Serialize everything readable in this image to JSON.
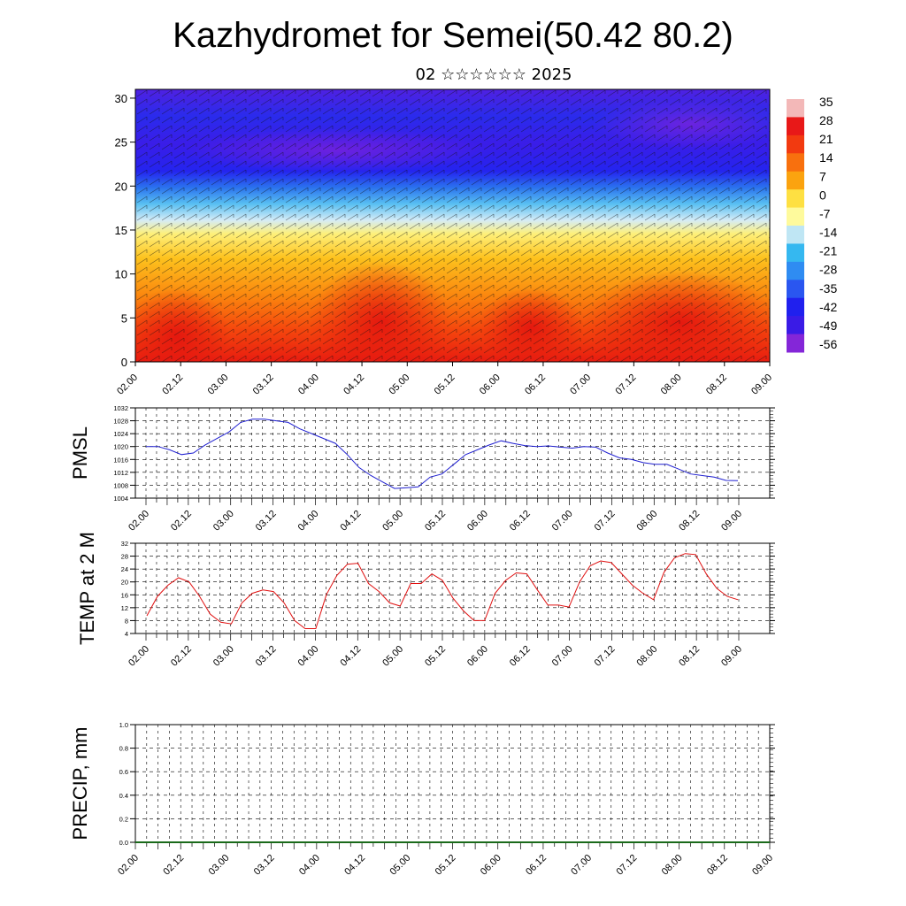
{
  "title": "Kazhydromet for Semei(50.42 80.2)",
  "subtitle": "02 ☆☆☆☆☆☆ 2025",
  "chart_data": [
    {
      "type": "heatmap",
      "name": "cross-section",
      "x_ticks": [
        "02.00",
        "02.12",
        "03.00",
        "03.12",
        "04.00",
        "04.12",
        "05.00",
        "05.12",
        "06.00",
        "06.12",
        "07.00",
        "07.12",
        "08.00",
        "08.12",
        "09.00"
      ],
      "y_ticks": [
        "0",
        "5",
        "10",
        "15",
        "20",
        "25",
        "30"
      ],
      "ylim": [
        0,
        31
      ],
      "colorbar_labels": [
        "35",
        "28",
        "21",
        "14",
        "7",
        "0",
        "-7",
        "-14",
        "-21",
        "-28",
        "-35",
        "-42",
        "-49",
        "-56"
      ],
      "colorbar_colors": [
        "#f3b8b8",
        "#e81818",
        "#f23a10",
        "#f8700e",
        "#fba30f",
        "#fee042",
        "#fefa9c",
        "#bfe6f4",
        "#35b8f0",
        "#2f8cf2",
        "#2a56f0",
        "#2020ee",
        "#3a1be6",
        "#8426d8"
      ],
      "has_wind_barbs": true
    },
    {
      "type": "line",
      "ylabel": "PMSL",
      "ylim": [
        1004,
        1032
      ],
      "yticks": [
        1004,
        1008,
        1012,
        1016,
        1020,
        1024,
        1028,
        1032
      ],
      "x_ticks": [
        "02.00",
        "02.12",
        "03.00",
        "03.12",
        "04.00",
        "04.12",
        "05.00",
        "05.12",
        "06.00",
        "06.12",
        "07.00",
        "07.12",
        "08.00",
        "08.12",
        "09.00"
      ],
      "color": "#1f1fd0",
      "values": [
        1020,
        1020,
        1019,
        1017.5,
        1018,
        1020.5,
        1022.5,
        1024.5,
        1027.5,
        1028.5,
        1028.5,
        1028,
        1027.5,
        1025.5,
        1024,
        1022.5,
        1021,
        1017.5,
        1013.5,
        1011,
        1009,
        1007,
        1007.2,
        1007.5,
        1010.5,
        1011.5,
        1014.5,
        1017.5,
        1019,
        1020.5,
        1021.8,
        1021,
        1020.3,
        1020,
        1020.2,
        1019.8,
        1019.5,
        1020,
        1019.8,
        1018,
        1016.5,
        1016,
        1015,
        1014.5,
        1014.5,
        1013,
        1011.5,
        1011,
        1010.5,
        1009.5,
        1009.4
      ]
    },
    {
      "type": "line",
      "ylabel": "TEMP at 2 M",
      "ylim": [
        4,
        32
      ],
      "yticks": [
        4,
        8,
        12,
        16,
        20,
        24,
        28,
        32
      ],
      "x_ticks": [
        "02.00",
        "02.12",
        "03.00",
        "03.12",
        "04.00",
        "04.12",
        "05.00",
        "05.12",
        "06.00",
        "06.12",
        "07.00",
        "07.12",
        "08.00",
        "08.12",
        "09.00"
      ],
      "color": "#e01010",
      "values": [
        9.5,
        15.5,
        19,
        21.3,
        20,
        15.5,
        10,
        7.5,
        7,
        13.5,
        16.5,
        17.5,
        17,
        13.5,
        8,
        5.5,
        5.5,
        16,
        22,
        25.5,
        25.8,
        19.5,
        17,
        13.5,
        12.5,
        19.5,
        19.5,
        22.5,
        20.5,
        15,
        11,
        8,
        8,
        16.5,
        20.5,
        22.8,
        22.5,
        17.5,
        12.8,
        12.8,
        12.2,
        20,
        25,
        26.5,
        26,
        22.5,
        19,
        16.5,
        14.5,
        23,
        27.5,
        28.8,
        28.5,
        22.5,
        18,
        15.5,
        14.5
      ]
    },
    {
      "type": "line",
      "ylabel": "PRECIP, mm",
      "ylim": [
        0,
        1
      ],
      "yticks": [
        "0.0",
        "0.2",
        "0.4",
        "0.6",
        "0.8",
        "1.0"
      ],
      "x_ticks": [
        "02.00",
        "02.12",
        "03.00",
        "03.12",
        "04.00",
        "04.12",
        "05.00",
        "05.12",
        "06.00",
        "06.12",
        "07.00",
        "07.12",
        "08.00",
        "08.12",
        "09.00"
      ],
      "color": "#1a6a1a",
      "values": [
        0,
        0,
        0,
        0,
        0,
        0,
        0,
        0,
        0,
        0,
        0,
        0,
        0,
        0,
        0
      ]
    }
  ]
}
